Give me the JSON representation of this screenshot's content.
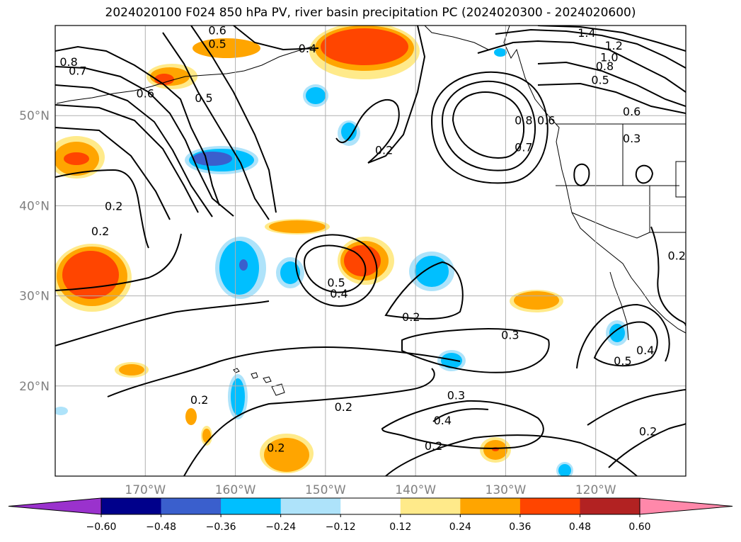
{
  "title": "2024020100 F024 850 hPa PV, river basin precipitation PC (2024020300 - 2024020600)",
  "lat_labels": [
    {
      "deg": 50,
      "text": "50°N"
    },
    {
      "deg": 40,
      "text": "40°N"
    },
    {
      "deg": 30,
      "text": "30°N"
    },
    {
      "deg": 20,
      "text": "20°N"
    }
  ],
  "lon_labels": [
    {
      "deg": -170,
      "text": "170°W"
    },
    {
      "deg": -160,
      "text": "160°W"
    },
    {
      "deg": -150,
      "text": "150°W"
    },
    {
      "deg": -140,
      "text": "140°W"
    },
    {
      "deg": -130,
      "text": "130°W"
    },
    {
      "deg": -120,
      "text": "120°W"
    }
  ],
  "extent": {
    "lon_min": -180,
    "lon_max": -110,
    "lat_min": 10,
    "lat_max": 60
  },
  "colorbar": {
    "under_color": "#9a32cd",
    "over_color": "#ff88aa",
    "bins": [
      {
        "color": "#00008b"
      },
      {
        "color": "#3a5fcd"
      },
      {
        "color": "#00bfff"
      },
      {
        "color": "#aee3fa"
      },
      {
        "color": "#ffffff"
      },
      {
        "color": "#ffea8a"
      },
      {
        "color": "#ffa500"
      },
      {
        "color": "#ff4500"
      },
      {
        "color": "#b22222"
      }
    ],
    "tick_labels": [
      "−0.60",
      "−0.48",
      "−0.36",
      "−0.24",
      "−0.12",
      "0.12",
      "0.24",
      "0.36",
      "0.48",
      "0.60"
    ]
  },
  "contour_labels": [
    {
      "text": "0.6",
      "lon": -162,
      "lat": 59.5
    },
    {
      "text": "0.5",
      "lon": -162,
      "lat": 58
    },
    {
      "text": "0.4",
      "lon": -152,
      "lat": 57.5
    },
    {
      "text": "1.4",
      "lon": -121,
      "lat": 59.2
    },
    {
      "text": "1.2",
      "lon": -118,
      "lat": 57.8
    },
    {
      "text": "1.0",
      "lon": -118.5,
      "lat": 56.5
    },
    {
      "text": "0.8",
      "lon": -119,
      "lat": 55.5
    },
    {
      "text": "0.5",
      "lon": -119.5,
      "lat": 54
    },
    {
      "text": "0.6",
      "lon": -116,
      "lat": 50.5
    },
    {
      "text": "0.3",
      "lon": -116,
      "lat": 47.5
    },
    {
      "text": "0.8",
      "lon": -178.5,
      "lat": 56
    },
    {
      "text": "0.7",
      "lon": -177.5,
      "lat": 55
    },
    {
      "text": "0.6",
      "lon": -170,
      "lat": 52.5
    },
    {
      "text": "0.5",
      "lon": -163.5,
      "lat": 52
    },
    {
      "text": "0.8",
      "lon": -128,
      "lat": 49.5
    },
    {
      "text": "0.6",
      "lon": -125.5,
      "lat": 49.5
    },
    {
      "text": "0.7",
      "lon": -128,
      "lat": 46.5
    },
    {
      "text": "0.2",
      "lon": -143.5,
      "lat": 46.2
    },
    {
      "text": "0.2",
      "lon": -173.5,
      "lat": 40
    },
    {
      "text": "0.2",
      "lon": -175,
      "lat": 37.2
    },
    {
      "text": "0.5",
      "lon": -148.8,
      "lat": 31.5
    },
    {
      "text": "0.4",
      "lon": -148.5,
      "lat": 30.3
    },
    {
      "text": "0.2",
      "lon": -140.5,
      "lat": 27.7
    },
    {
      "text": "0.3",
      "lon": -129.5,
      "lat": 25.7
    },
    {
      "text": "0.5",
      "lon": -117,
      "lat": 22.8
    },
    {
      "text": "0.4",
      "lon": -114.5,
      "lat": 24
    },
    {
      "text": "0.2",
      "lon": -111,
      "lat": 34.5
    },
    {
      "text": "0.2",
      "lon": -164,
      "lat": 18.5
    },
    {
      "text": "0.2",
      "lon": -148,
      "lat": 17.7
    },
    {
      "text": "0.3",
      "lon": -135.5,
      "lat": 19
    },
    {
      "text": "0.4",
      "lon": -137,
      "lat": 16.2
    },
    {
      "text": "0.2",
      "lon": -138,
      "lat": 13.4
    },
    {
      "text": "0.2",
      "lon": -155.5,
      "lat": 13.2
    },
    {
      "text": "0.2",
      "lon": -114.2,
      "lat": 15
    }
  ]
}
